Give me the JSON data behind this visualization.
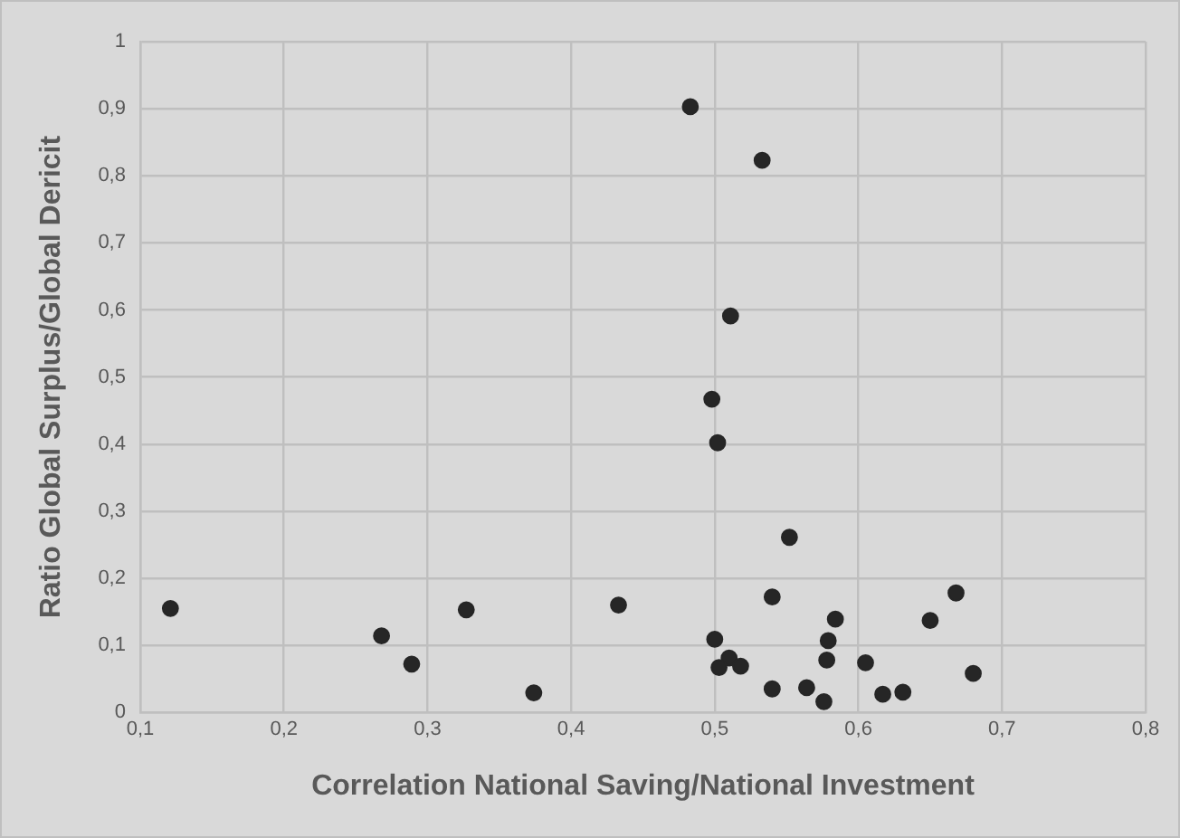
{
  "chart_data": {
    "type": "scatter",
    "xlabel": "Correlation National Saving/National Investment",
    "ylabel": "Ratio Global Surplus/Global Dericit",
    "x": [
      0.121,
      0.268,
      0.289,
      0.327,
      0.374,
      0.433,
      0.483,
      0.533,
      0.511,
      0.498,
      0.502,
      0.552,
      0.54,
      0.668,
      0.584,
      0.65,
      0.5,
      0.579,
      0.578,
      0.51,
      0.503,
      0.518,
      0.605,
      0.68,
      0.54,
      0.564,
      0.576,
      0.617,
      0.631
    ],
    "series": [
      {
        "color": "#262626",
        "values": [
          0.155,
          0.114,
          0.072,
          0.153,
          0.029,
          0.16,
          0.903,
          0.823,
          0.591,
          0.467,
          0.402,
          0.261,
          0.172,
          0.178,
          0.139,
          0.137,
          0.109,
          0.107,
          0.078,
          0.081,
          0.067,
          0.069,
          0.074,
          0.058,
          0.035,
          0.037,
          0.016,
          0.027,
          0.03
        ]
      }
    ],
    "xlim": [
      0.1,
      0.8
    ],
    "ylim": [
      0,
      1
    ],
    "xticks": [
      {
        "value": 0.1,
        "label": "0,1"
      },
      {
        "value": 0.2,
        "label": "0,2"
      },
      {
        "value": 0.3,
        "label": "0,3"
      },
      {
        "value": 0.4,
        "label": "0,4"
      },
      {
        "value": 0.5,
        "label": "0,5"
      },
      {
        "value": 0.6,
        "label": "0,6"
      },
      {
        "value": 0.7,
        "label": "0,7"
      },
      {
        "value": 0.8,
        "label": "0,8"
      }
    ],
    "yticks": [
      0,
      {
        "value": 0.1,
        "label": "0,1"
      },
      {
        "value": 0.2,
        "label": "0,2"
      },
      {
        "value": 0.3,
        "label": "0,3"
      },
      {
        "value": 0.4,
        "label": "0,4"
      },
      {
        "value": 0.5,
        "label": "0,5"
      },
      {
        "value": 0.6,
        "label": "0,6"
      },
      {
        "value": 0.7,
        "label": "0,7"
      },
      {
        "value": 0.8,
        "label": "0,8"
      },
      {
        "value": 0.9,
        "label": "0,9"
      },
      1
    ],
    "grid": true,
    "legend": false,
    "marker": "circle"
  }
}
